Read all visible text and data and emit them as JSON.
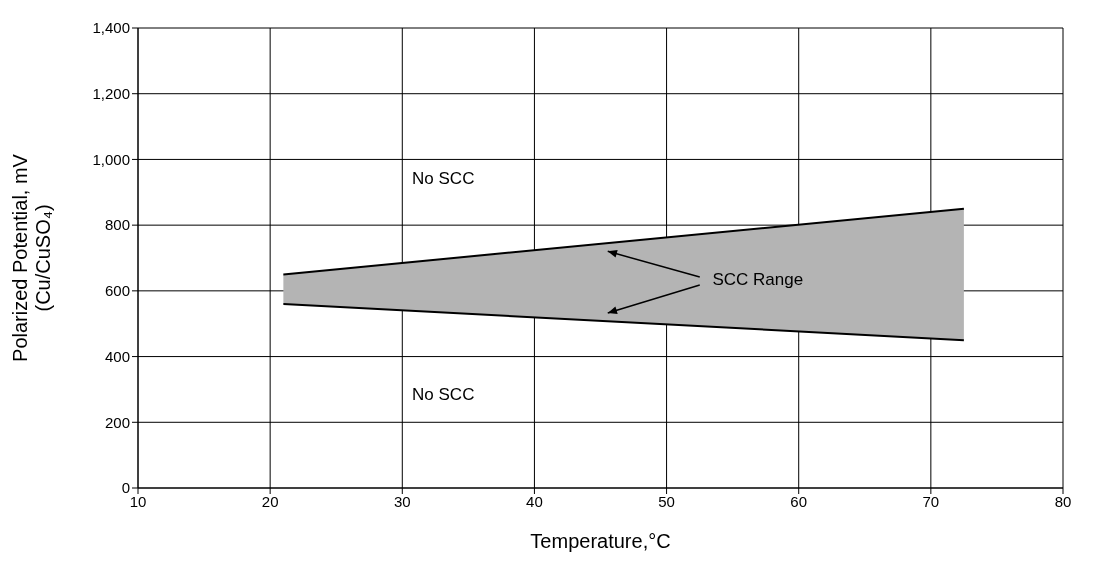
{
  "chart_data": {
    "type": "line",
    "xlabel": "Temperature,°C",
    "ylabel": "Polarized Potential, mV\n(Cu/CuSO₄)",
    "xlim": [
      10,
      80
    ],
    "xticks": [
      10,
      20,
      30,
      40,
      50,
      60,
      70,
      80
    ],
    "ylim": [
      0,
      1400
    ],
    "yticks": [
      0,
      200,
      400,
      600,
      800,
      {
        "value": 1000,
        "label": "1,000"
      },
      {
        "value": 1200,
        "label": "1,200"
      },
      {
        "value": 1400,
        "label": "1,400"
      }
    ],
    "grid": true,
    "x": [
      21,
      72.5
    ],
    "series": [
      {
        "color": "#000000",
        "values": [
          650,
          850
        ],
        "lower": [
          560,
          450
        ],
        "upper": [
          650,
          850
        ]
      },
      {
        "color": "#000000",
        "values": [
          560,
          450
        ]
      }
    ],
    "annotations": [
      "No SCC",
      "No SCC",
      "SCC Range"
    ]
  }
}
